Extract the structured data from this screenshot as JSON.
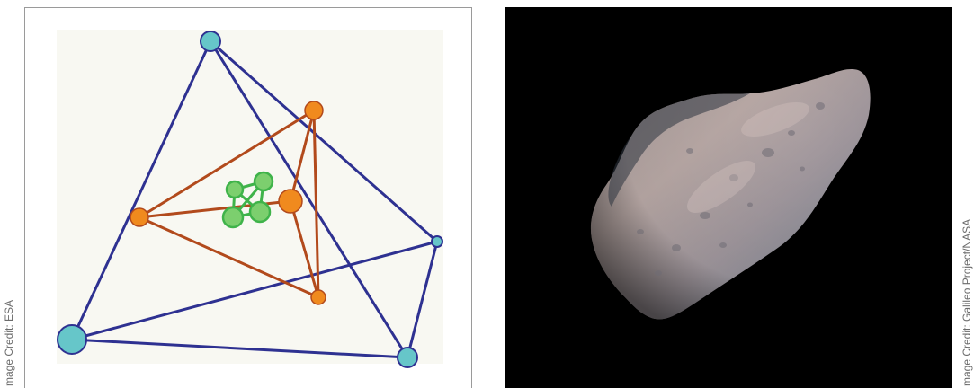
{
  "left_figure": {
    "credit": "mage Credit: ESA",
    "colors": {
      "background": "#f8f8f2",
      "outer_tetrahedron": "#2e3191",
      "outer_nodes": "#66c6c9",
      "middle_tetrahedron": "#b24a1c",
      "middle_nodes": "#f08a1e",
      "inner_cluster": "#3fb34a"
    }
  },
  "right_figure": {
    "credit": "mage Credit: Galileo Project/NASA",
    "colors": {
      "background": "#000000",
      "asteroid_light": "#b9a9a6",
      "asteroid_mid": "#8a8490",
      "asteroid_shadow": "#3e4652"
    }
  }
}
